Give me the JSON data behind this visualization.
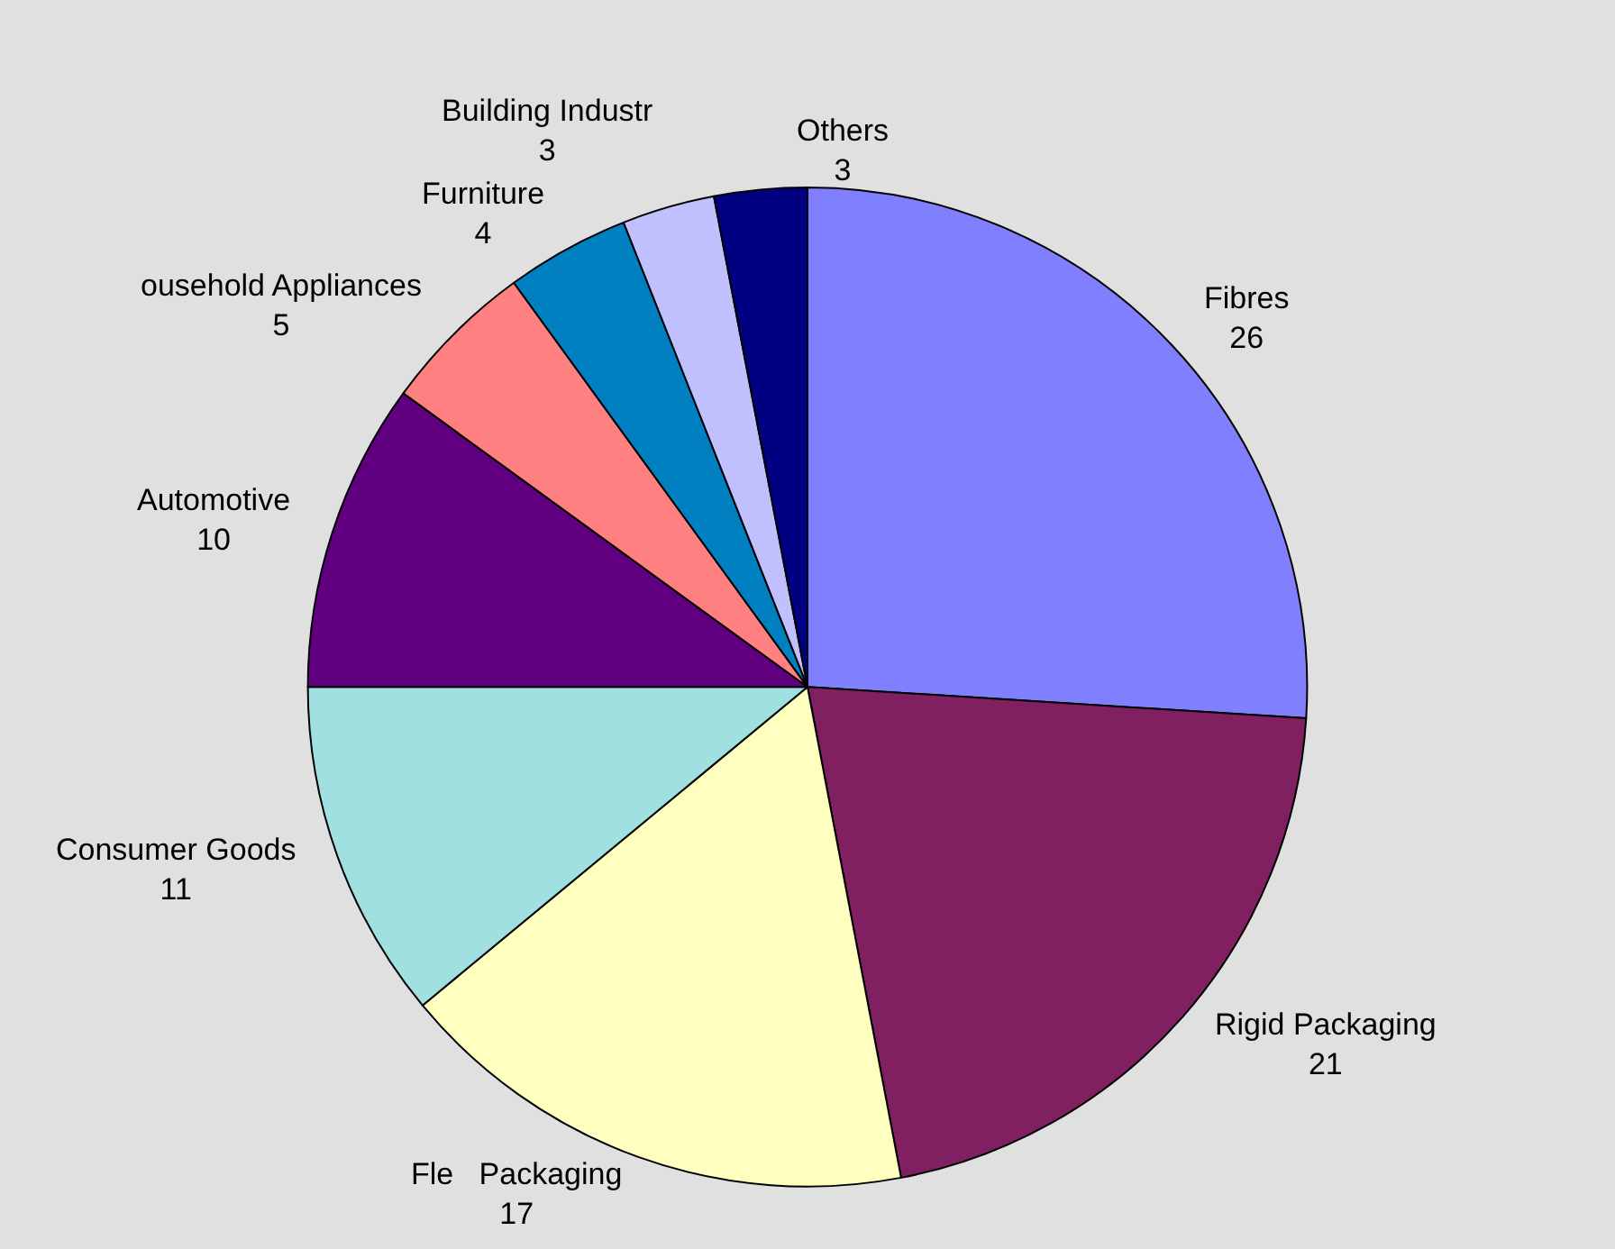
{
  "chart_data": {
    "type": "pie",
    "categories": [
      "Fibres",
      "Rigid Packaging",
      "Fle   Packaging",
      "Consumer Goods",
      "Automotive",
      "ousehold Appliances",
      "Furniture",
      "Building Industr",
      "Others"
    ],
    "values": [
      26,
      21,
      17,
      11,
      10,
      5,
      4,
      3,
      3
    ],
    "colors": [
      "#8080ff",
      "#802060",
      "#ffffc0",
      "#a0e0e0",
      "#600080",
      "#ff8080",
      "#0080c0",
      "#c0c0ff",
      "#000080"
    ],
    "data_labels": true,
    "legend": false
  }
}
